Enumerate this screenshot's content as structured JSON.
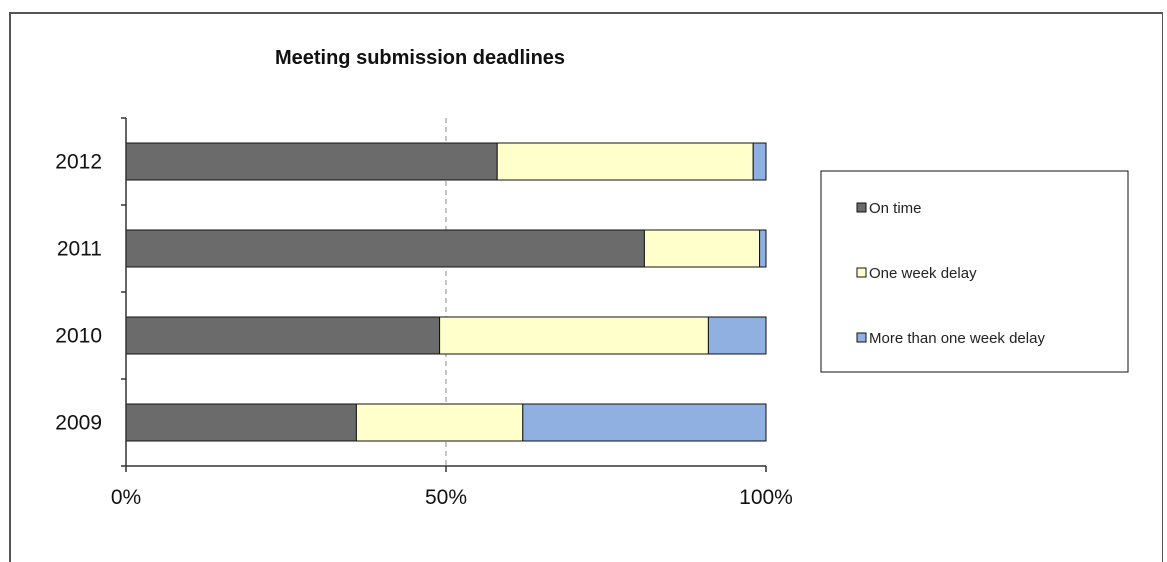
{
  "figure": {
    "caption": ""
  },
  "chart_data": {
    "type": "bar",
    "orientation": "horizontal",
    "stacked": true,
    "normalized": true,
    "title": "Meeting submission deadlines",
    "xlabel": "",
    "ylabel": "",
    "categories": [
      "2012",
      "2011",
      "2010",
      "2009"
    ],
    "series": [
      {
        "name": "On time",
        "color": "#6b6b6b",
        "values": [
          58,
          81,
          49,
          36
        ]
      },
      {
        "name": "One week delay",
        "color": "#ffffcc",
        "values": [
          40,
          18,
          42,
          26
        ]
      },
      {
        "name": "More than one week delay",
        "color": "#8fb0e0",
        "values": [
          2,
          1,
          9,
          38
        ]
      }
    ],
    "xlim": [
      0,
      100
    ],
    "x_ticks": [
      "0%",
      "50%",
      "100%"
    ],
    "x_tick_values": [
      0,
      50,
      100
    ],
    "gridline_at": 50,
    "grid": true,
    "legend_position": "right"
  }
}
